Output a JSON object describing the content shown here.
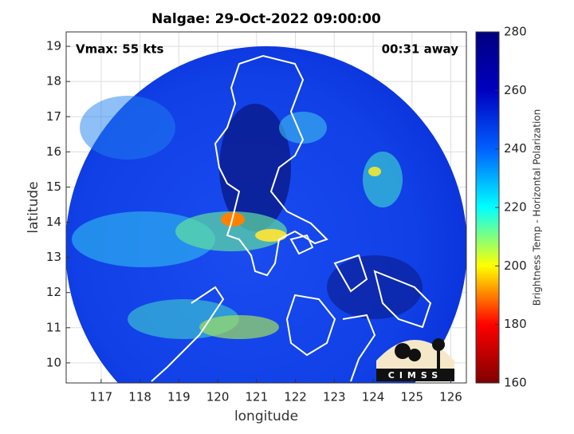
{
  "title": "Nalgae: 29-Oct-2022 09:00:00",
  "annotations": {
    "left": "Vmax: 55 kts",
    "right": "00:31 away"
  },
  "x_axis": {
    "label": "longitude",
    "lim": [
      116.1,
      126.4
    ],
    "ticks": [
      117,
      118,
      119,
      120,
      121,
      122,
      123,
      124,
      125,
      126
    ]
  },
  "y_axis": {
    "label": "latitude",
    "lim": [
      9.43,
      19.41
    ],
    "ticks": [
      10,
      11,
      12,
      13,
      14,
      15,
      16,
      17,
      18,
      19
    ]
  },
  "colorbar": {
    "label": "Brightness Temp - Horizontal Polarization",
    "lim": [
      160,
      280
    ],
    "ticks": [
      160,
      180,
      200,
      220,
      240,
      260,
      280
    ],
    "colormap": [
      "#800000",
      "#ff0000",
      "#ffff00",
      "#00ffff",
      "#0060ff",
      "#0000c0",
      "#000080"
    ]
  },
  "logo": "CIMSS"
}
